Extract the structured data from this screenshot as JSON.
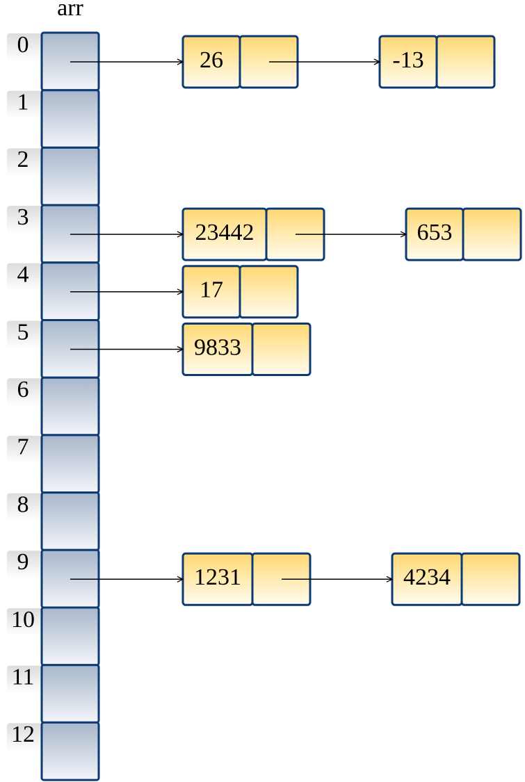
{
  "title": "arr",
  "slots": [
    {
      "index": "0",
      "chain": [
        "26",
        "-13"
      ]
    },
    {
      "index": "1",
      "chain": []
    },
    {
      "index": "2",
      "chain": []
    },
    {
      "index": "3",
      "chain": [
        "23442",
        "653"
      ]
    },
    {
      "index": "4",
      "chain": [
        "17"
      ]
    },
    {
      "index": "5",
      "chain": [
        "9833"
      ]
    },
    {
      "index": "6",
      "chain": []
    },
    {
      "index": "7",
      "chain": []
    },
    {
      "index": "8",
      "chain": []
    },
    {
      "index": "9",
      "chain": [
        "1231",
        "4234"
      ]
    },
    {
      "index": "10",
      "chain": []
    },
    {
      "index": "11",
      "chain": []
    },
    {
      "index": "12",
      "chain": []
    }
  ]
}
